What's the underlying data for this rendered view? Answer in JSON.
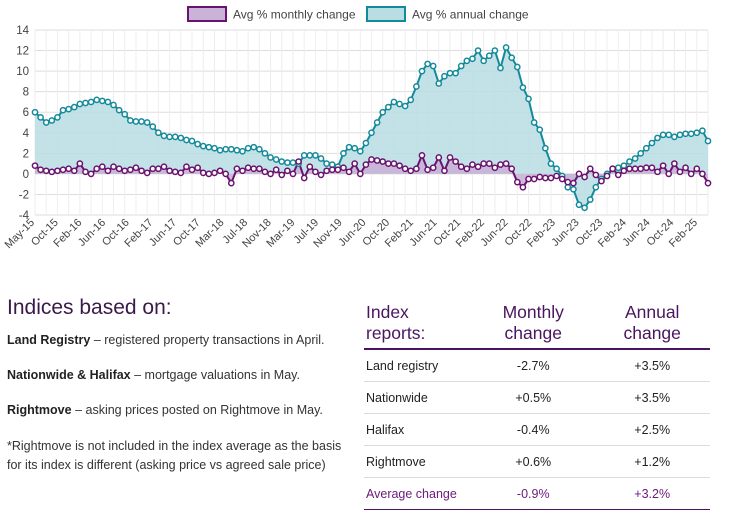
{
  "chart_data": {
    "type": "line",
    "legend": [
      "Avg % monthly change",
      "Avg % annual change"
    ],
    "legend_position": "top",
    "colors": {
      "annual_line": "#138a9a",
      "annual_fill": "#b8dde3",
      "monthly_line": "#6b1270",
      "monthly_fill": "#c9b3d6",
      "grid": "#dddddd"
    },
    "ylim": [
      -4,
      14
    ],
    "yticks": [
      -4,
      -2,
      0,
      2,
      4,
      6,
      8,
      10,
      12,
      14
    ],
    "x_tick_labels": [
      "May-15",
      "Oct-15",
      "Feb-16",
      "Jun-16",
      "Oct-16",
      "Feb-17",
      "Jun-17",
      "Oct-17",
      "Mar-18",
      "Jul-18",
      "Nov-18",
      "Mar-19",
      "Jul-19",
      "Nov-19",
      "Jun-20",
      "Oct-20",
      "Feb-21",
      "Jun-21",
      "Oct-21",
      "Feb-22",
      "Jun-22",
      "Oct-22",
      "Feb-23",
      "Jun-23",
      "Oct-23",
      "Feb-24",
      "Jun-24",
      "Oct-24",
      "Feb-25"
    ],
    "series": [
      {
        "name": "Avg % annual change",
        "values": [
          6.0,
          5.5,
          5.0,
          5.2,
          5.5,
          6.2,
          6.3,
          6.5,
          6.8,
          6.9,
          7.0,
          7.2,
          7.1,
          7.0,
          6.7,
          6.2,
          5.8,
          5.2,
          5.1,
          5.1,
          5.0,
          4.6,
          4.0,
          3.7,
          3.6,
          3.6,
          3.5,
          3.3,
          3.2,
          2.9,
          2.7,
          2.6,
          2.5,
          2.3,
          2.4,
          2.4,
          2.3,
          2.2,
          2.5,
          2.6,
          2.4,
          2.0,
          1.6,
          1.4,
          1.2,
          1.1,
          1.1,
          1.0,
          1.8,
          1.8,
          1.8,
          1.5,
          1.0,
          0.9,
          0.7,
          2.0,
          2.6,
          2.5,
          2.2,
          3.0,
          4.0,
          5.0,
          6.0,
          6.5,
          7.0,
          6.8,
          6.6,
          7.2,
          8.5,
          10.0,
          10.7,
          10.5,
          8.8,
          9.5,
          9.8,
          9.8,
          10.5,
          11.0,
          11.2,
          12.0,
          11.0,
          11.5,
          12.0,
          10.3,
          12.3,
          11.3,
          10.4,
          8.4,
          7.3,
          5.0,
          4.3,
          2.5,
          1.0,
          0.5,
          -0.2,
          -1.3,
          -1.5,
          -3.0,
          -3.3,
          -2.5,
          -1.3,
          -0.5,
          0.0,
          0.5,
          0.6,
          0.8,
          1.2,
          1.5,
          2.0,
          2.5,
          3.0,
          3.5,
          3.8,
          3.8,
          3.6,
          3.8,
          3.9,
          3.9,
          4.0,
          4.2,
          3.2
        ]
      },
      {
        "name": "Avg % monthly change",
        "values": [
          0.8,
          0.4,
          0.3,
          0.2,
          0.3,
          0.4,
          0.5,
          0.3,
          1.0,
          0.2,
          0.0,
          0.5,
          0.7,
          0.3,
          0.7,
          0.5,
          0.3,
          0.4,
          0.6,
          0.3,
          0.1,
          0.5,
          0.5,
          0.7,
          0.3,
          0.2,
          0.1,
          0.7,
          0.4,
          0.6,
          0.1,
          0.0,
          0.1,
          0.3,
          0.0,
          -0.9,
          0.5,
          0.3,
          0.6,
          0.5,
          0.5,
          0.2,
          0.0,
          0.4,
          -0.1,
          0.3,
          0.0,
          1.2,
          -0.4,
          0.7,
          0.2,
          -0.1,
          0.3,
          0.4,
          0.4,
          0.6,
          0.2,
          1.0,
          0.0,
          0.9,
          1.4,
          1.3,
          1.2,
          1.0,
          1.0,
          0.8,
          0.5,
          0.3,
          0.5,
          1.8,
          0.4,
          0.6,
          1.6,
          0.3,
          1.6,
          1.2,
          0.7,
          0.5,
          0.9,
          0.7,
          1.0,
          1.0,
          0.6,
          0.9,
          1.0,
          0.5,
          -0.8,
          -1.3,
          -0.5,
          -0.5,
          -0.3,
          -0.4,
          -0.4,
          -0.2,
          -0.5,
          -0.8,
          -0.9,
          0.0,
          -0.3,
          0.5,
          -0.1,
          -0.7,
          -0.2,
          0.5,
          -0.1,
          0.3,
          0.5,
          0.5,
          0.5,
          0.6,
          0.6,
          0.2,
          0.8,
          0.0,
          1.0,
          0.2,
          0.6,
          0.0,
          0.5,
          0.0,
          -0.9
        ]
      }
    ]
  },
  "info": {
    "heading": "Indices based on:",
    "lines": [
      {
        "source": "Land Registry",
        "desc": " – registered property transactions in April."
      },
      {
        "source": "Nationwide & Halifax",
        "desc": " – mortgage valuations in May."
      },
      {
        "source": "Rightmove",
        "desc": " – asking prices posted on Rightmove in May."
      }
    ],
    "note": "*Rightmove is not included in the index average as the basis for its index is different (asking price vs agreed sale price)"
  },
  "table": {
    "headers": [
      "Index reports:",
      "Monthly change",
      "Annual change"
    ],
    "rows": [
      {
        "name": "Land registry",
        "monthly": "-2.7%",
        "annual": "+3.5%"
      },
      {
        "name": "Nationwide",
        "monthly": "+0.5%",
        "annual": "+3.5%"
      },
      {
        "name": "Halifax",
        "monthly": "-0.4%",
        "annual": "+2.5%"
      },
      {
        "name": "Rightmove",
        "monthly": "+0.6%",
        "annual": "+1.2%"
      }
    ],
    "average": {
      "name": "Average change",
      "monthly": "-0.9%",
      "annual": "+3.2%"
    }
  }
}
